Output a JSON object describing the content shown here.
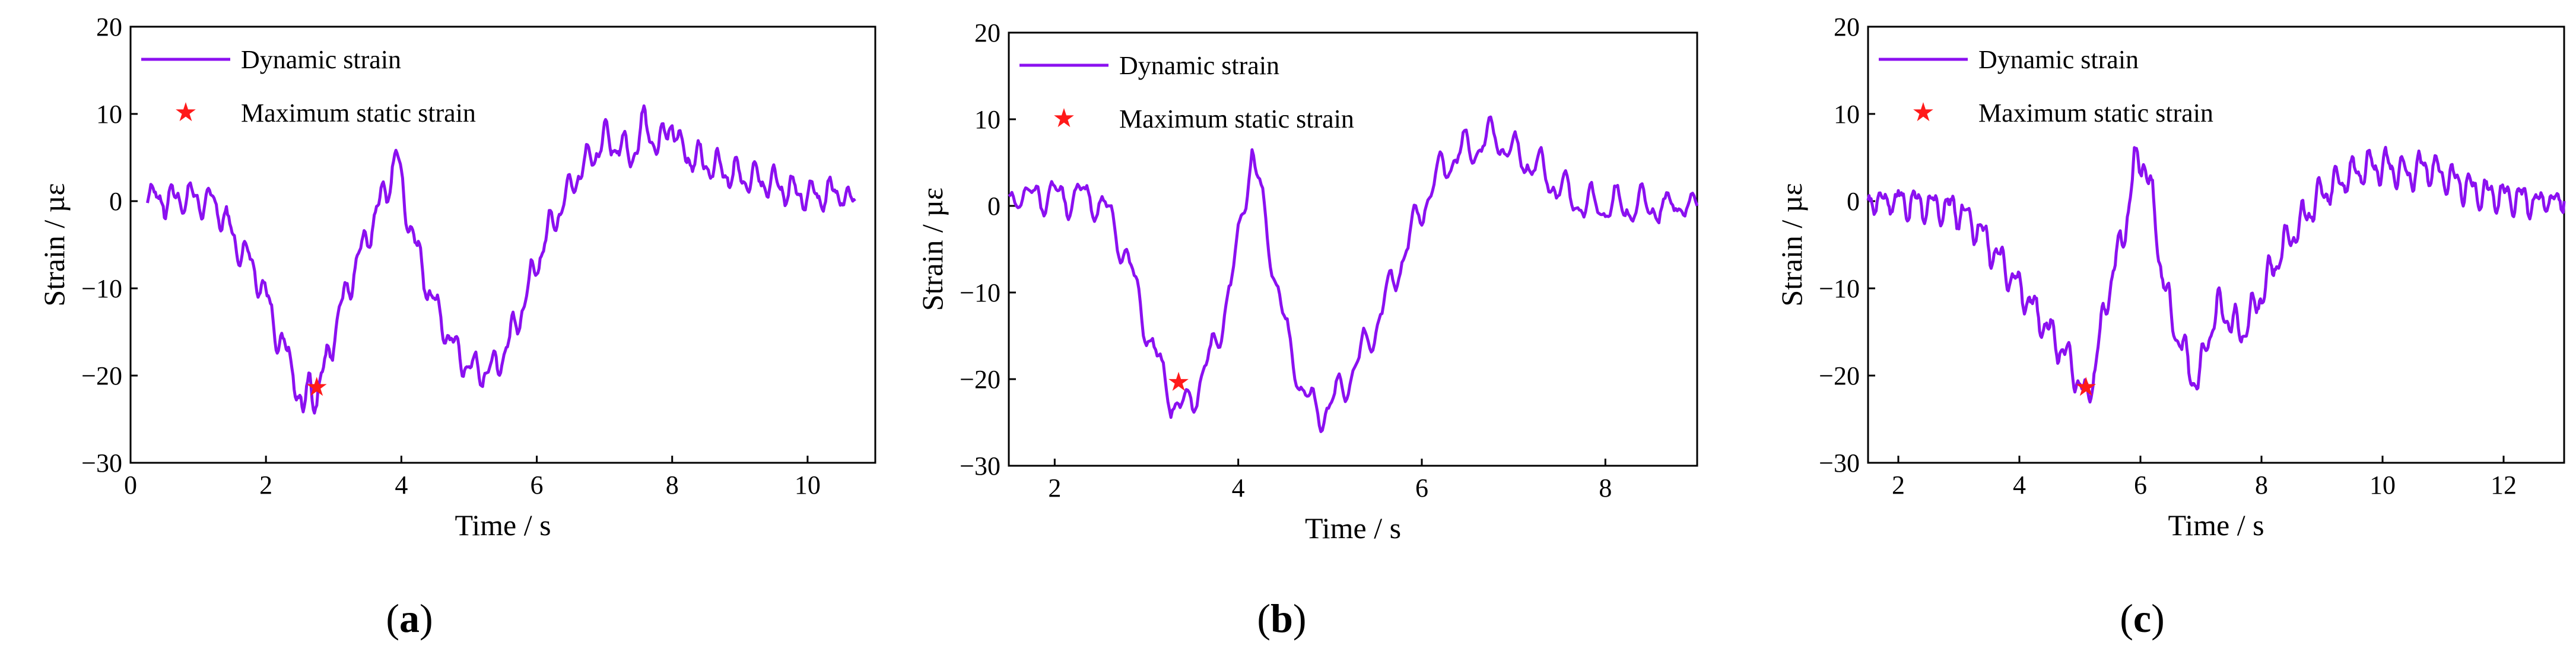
{
  "colors": {
    "line": "#8B10F0",
    "marker": "#FF1A1A",
    "axes": "#000000"
  },
  "legend": {
    "line_label": "Dynamic strain",
    "marker_label": "Maximum static strain",
    "marker_symbol": "★"
  },
  "chart_data": [
    {
      "type": "line",
      "panel": "a",
      "caption": {
        "open": "(",
        "letter": "a",
        "close": ")"
      },
      "xlabel": "Time / s",
      "ylabel": "Strain / µε",
      "xlim": [
        0,
        11
      ],
      "ylim": [
        -30,
        20
      ],
      "xticks": [
        0,
        2,
        4,
        6,
        8,
        10
      ],
      "yticks": [
        20,
        10,
        0,
        -10,
        -20,
        -30
      ],
      "ytick_labels": [
        "20",
        "10",
        "0",
        "−10",
        "−20",
        "−30"
      ],
      "series": [
        {
          "name": "Dynamic strain",
          "x": [
            0.25,
            0.5,
            0.8,
            1.0,
            1.2,
            1.4,
            1.55,
            1.7,
            1.9,
            2.05,
            2.2,
            2.4,
            2.55,
            2.65,
            2.75,
            2.9,
            3.05,
            3.2,
            3.35,
            3.55,
            3.7,
            3.85,
            3.92,
            4.05,
            4.2,
            4.4,
            4.6,
            4.8,
            5.0,
            5.2,
            5.4,
            5.6,
            5.8,
            6.0,
            6.2,
            6.4,
            6.6,
            6.8,
            7.0,
            7.2,
            7.4,
            7.6,
            7.8,
            8.0,
            8.1,
            8.3,
            8.6,
            8.9,
            9.2,
            9.5,
            9.8,
            10.1,
            10.4,
            10.7
          ],
          "y": [
            1,
            0,
            0.5,
            0,
            0,
            -2,
            -5,
            -6,
            -9,
            -12,
            -16,
            -19,
            -25,
            -20,
            -23,
            -18,
            -14,
            -10,
            -7,
            -3,
            0,
            3,
            5.5,
            0,
            -5,
            -10,
            -14,
            -17,
            -19,
            -19.5,
            -19,
            -16,
            -12,
            -7,
            -3,
            0,
            3,
            5,
            7,
            6.5,
            5,
            9,
            6,
            9.5,
            6,
            5,
            4,
            3,
            2.5,
            2,
            1,
            0.5,
            1,
            0
          ],
          "noise_amplitude": 2.2
        }
      ],
      "marker": {
        "name": "Maximum static strain",
        "x": 2.75,
        "y": -21.5
      }
    },
    {
      "type": "line",
      "panel": "b",
      "caption": {
        "open": "(",
        "letter": "b",
        "close": ")"
      },
      "xlabel": "Time / s",
      "ylabel": "Strain / µε",
      "xlim": [
        1.5,
        9
      ],
      "ylim": [
        -30,
        20
      ],
      "xticks": [
        2,
        4,
        6,
        8
      ],
      "yticks": [
        20,
        10,
        0,
        -10,
        -20,
        -30
      ],
      "ytick_labels": [
        "20",
        "10",
        "0",
        "−10",
        "−20",
        "−30"
      ],
      "series": [
        {
          "name": "Dynamic strain",
          "x": [
            1.5,
            1.8,
            2.1,
            2.4,
            2.6,
            2.75,
            2.9,
            3.05,
            3.2,
            3.35,
            3.5,
            3.65,
            3.8,
            3.95,
            4.05,
            4.15,
            4.25,
            4.4,
            4.55,
            4.7,
            4.85,
            5.0,
            5.15,
            5.3,
            5.45,
            5.6,
            5.75,
            5.9,
            6.05,
            6.2,
            6.4,
            6.6,
            6.8,
            7.0,
            7.2,
            7.4,
            7.6,
            7.8,
            8.0,
            8.3,
            8.6,
            9.0
          ],
          "y": [
            1,
            1.5,
            1,
            1,
            -1,
            -5,
            -10,
            -16,
            -20,
            -24,
            -22,
            -19,
            -14,
            -8,
            0,
            6,
            1,
            -8,
            -16,
            -21,
            -24,
            -23,
            -21,
            -18,
            -15,
            -11,
            -7,
            -3,
            1,
            4,
            6,
            7,
            8,
            6,
            5,
            3,
            1,
            0,
            0,
            0,
            0,
            0
          ],
          "noise_amplitude": 2.5
        }
      ],
      "marker": {
        "name": "Maximum static strain",
        "x": 3.35,
        "y": -20.5
      }
    },
    {
      "type": "line",
      "panel": "c",
      "caption": {
        "open": "(",
        "letter": "c",
        "close": ")"
      },
      "xlabel": "Time / s",
      "ylabel": "Strain / µε",
      "xlim": [
        1.5,
        13
      ],
      "ylim": [
        -30,
        20
      ],
      "xticks": [
        2,
        4,
        6,
        8,
        10,
        12
      ],
      "yticks": [
        20,
        10,
        0,
        -10,
        -20,
        -30
      ],
      "ytick_labels": [
        "20",
        "10",
        "0",
        "−10",
        "−20",
        "−30"
      ],
      "series": [
        {
          "name": "Dynamic strain",
          "x": [
            1.5,
            2.0,
            2.5,
            3.0,
            3.3,
            3.6,
            3.9,
            4.2,
            4.5,
            4.8,
            5.0,
            5.1,
            5.25,
            5.4,
            5.55,
            5.75,
            5.9,
            6.05,
            6.2,
            6.35,
            6.5,
            6.65,
            6.8,
            6.95,
            7.1,
            7.3,
            7.5,
            7.7,
            7.9,
            8.1,
            8.3,
            8.6,
            8.9,
            9.2,
            9.5,
            9.8,
            10.1,
            10.4,
            10.7,
            11.0,
            11.3,
            11.6,
            12.0,
            12.5,
            13.0
          ],
          "y": [
            0,
            0,
            -0.5,
            -1,
            -3,
            -6,
            -9,
            -12,
            -15,
            -18,
            -21,
            -23,
            -19,
            -13,
            -8,
            -3,
            4,
            5,
            0,
            -8,
            -13,
            -16,
            -19,
            -21,
            -16,
            -12,
            -14,
            -15,
            -12,
            -9,
            -6,
            -3,
            0,
            2,
            3,
            4,
            4,
            3,
            4,
            3,
            2,
            1,
            0.5,
            0,
            0
          ],
          "noise_amplitude": 2.3
        }
      ],
      "marker": {
        "name": "Maximum static strain",
        "x": 5.1,
        "y": -21.5
      }
    }
  ]
}
